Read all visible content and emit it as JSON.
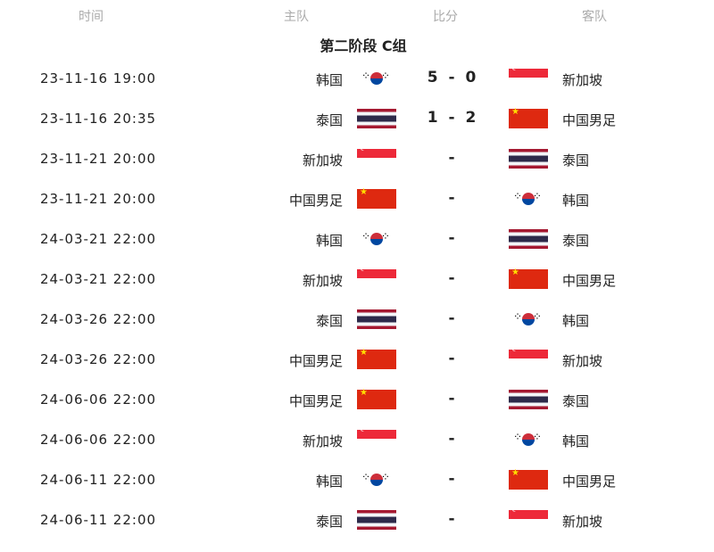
{
  "header": {
    "time": "时间",
    "home": "主队",
    "score": "比分",
    "away": "客队"
  },
  "group_title": "第二阶段 C组",
  "matches": [
    {
      "time": "23-11-16 19:00",
      "home": "韩国",
      "home_flag": "kr",
      "score": "5 - 0",
      "away": "新加坡",
      "away_flag": "sg"
    },
    {
      "time": "23-11-16 20:35",
      "home": "泰国",
      "home_flag": "th",
      "score": "1 - 2",
      "away": "中国男足",
      "away_flag": "cn"
    },
    {
      "time": "23-11-21 20:00",
      "home": "新加坡",
      "home_flag": "sg",
      "score": "-",
      "away": "泰国",
      "away_flag": "th"
    },
    {
      "time": "23-11-21 20:00",
      "home": "中国男足",
      "home_flag": "cn",
      "score": "-",
      "away": "韩国",
      "away_flag": "kr"
    },
    {
      "time": "24-03-21 22:00",
      "home": "韩国",
      "home_flag": "kr",
      "score": "-",
      "away": "泰国",
      "away_flag": "th"
    },
    {
      "time": "24-03-21 22:00",
      "home": "新加坡",
      "home_flag": "sg",
      "score": "-",
      "away": "中国男足",
      "away_flag": "cn"
    },
    {
      "time": "24-03-26 22:00",
      "home": "泰国",
      "home_flag": "th",
      "score": "-",
      "away": "韩国",
      "away_flag": "kr"
    },
    {
      "time": "24-03-26 22:00",
      "home": "中国男足",
      "home_flag": "cn",
      "score": "-",
      "away": "新加坡",
      "away_flag": "sg"
    },
    {
      "time": "24-06-06 22:00",
      "home": "中国男足",
      "home_flag": "cn",
      "score": "-",
      "away": "泰国",
      "away_flag": "th"
    },
    {
      "time": "24-06-06 22:00",
      "home": "新加坡",
      "home_flag": "sg",
      "score": "-",
      "away": "韩国",
      "away_flag": "kr"
    },
    {
      "time": "24-06-11 22:00",
      "home": "韩国",
      "home_flag": "kr",
      "score": "-",
      "away": "中国男足",
      "away_flag": "cn"
    },
    {
      "time": "24-06-11 22:00",
      "home": "泰国",
      "home_flag": "th",
      "score": "-",
      "away": "新加坡",
      "away_flag": "sg"
    }
  ]
}
